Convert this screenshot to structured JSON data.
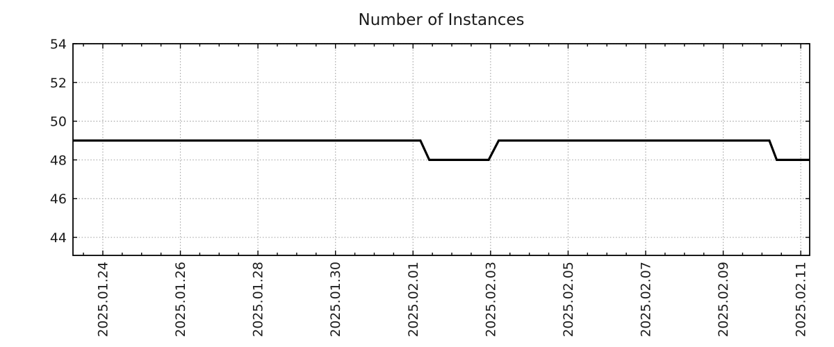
{
  "chart_data": {
    "type": "line",
    "title": "Number of Instances",
    "xlabel": "",
    "ylabel": "",
    "legend": null,
    "grid": true,
    "grid_style": "dotted",
    "x_unit": "days since 2025-01-24 00:00",
    "xlim": [
      -0.77,
      18.23
    ],
    "ylim": [
      43.07,
      54
    ],
    "y_ticks": [
      44,
      46,
      48,
      50,
      52,
      54
    ],
    "x_ticks": [
      {
        "t": 0,
        "label": "2025.01.24"
      },
      {
        "t": 2,
        "label": "2025.01.26"
      },
      {
        "t": 4,
        "label": "2025.01.28"
      },
      {
        "t": 6,
        "label": "2025.01.30"
      },
      {
        "t": 8,
        "label": "2025.02.01"
      },
      {
        "t": 10,
        "label": "2025.02.03"
      },
      {
        "t": 12,
        "label": "2025.02.05"
      },
      {
        "t": 14,
        "label": "2025.02.07"
      },
      {
        "t": 16,
        "label": "2025.02.09"
      },
      {
        "t": 18,
        "label": "2025.02.11"
      }
    ],
    "x_minor_tick_step": 0.5,
    "series": [
      {
        "name": "instances",
        "color": "#000000",
        "line_width": 3.2,
        "points": [
          {
            "t": -0.77,
            "datetime": "2025-01-23 05:30",
            "value": 49
          },
          {
            "t": 8.19,
            "datetime": "2025-02-01 04:30",
            "value": 49
          },
          {
            "t": 8.42,
            "datetime": "2025-02-01 10:00",
            "value": 48
          },
          {
            "t": 9.95,
            "datetime": "2025-02-02 22:45",
            "value": 48
          },
          {
            "t": 10.21,
            "datetime": "2025-02-03 05:00",
            "value": 49
          },
          {
            "t": 17.19,
            "datetime": "2025-02-10 04:30",
            "value": 49
          },
          {
            "t": 17.38,
            "datetime": "2025-02-10 09:00",
            "value": 48
          },
          {
            "t": 18.23,
            "datetime": "2025-02-11 05:30",
            "value": 48
          }
        ]
      }
    ],
    "style": {
      "background": "#ffffff",
      "grid_color": "#a6a6a6",
      "axis_color": "#000000",
      "text_color": "#1a1a1a"
    }
  }
}
